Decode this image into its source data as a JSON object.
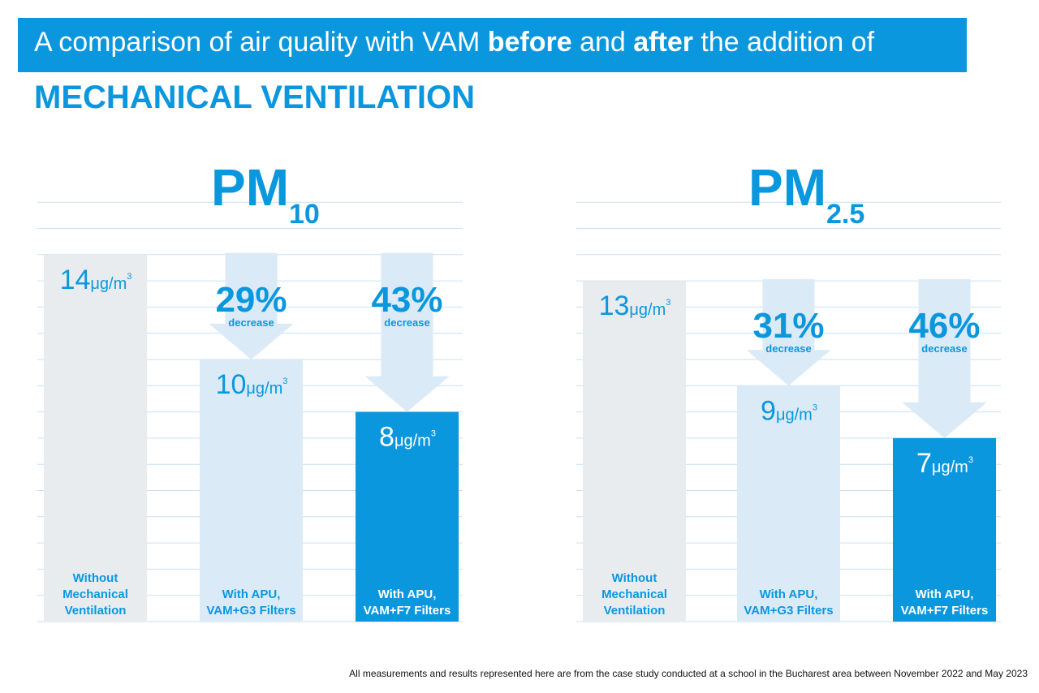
{
  "title": {
    "part1": "A comparison of air quality with VAM ",
    "bold1": "before",
    "part2": " and ",
    "bold2": "after",
    "part3": " the addition of",
    "line2": "MECHANICAL VENTILATION"
  },
  "footer_note": "All measurements and results represented here are from the case study conducted at a school in the Bucharest area between November 2022 and May 2023",
  "colors": {
    "accent": "#0a97de",
    "bar_without": "#e9ecee",
    "bar_g3": "#dbeaf7",
    "bar_f7": "#0a97de",
    "arrow": "#dbeaf7",
    "grid": "#c9e0f2",
    "label_text": "#0a97de"
  },
  "chart_data": [
    {
      "type": "bar",
      "title": "PM",
      "title_sub": "10",
      "unit": "μg/m",
      "unit_sup": "3",
      "ylim": [
        0,
        16
      ],
      "categories": [
        "Without Mechanical Ventilation",
        "With APU, VAM+G3 Filters",
        "With APU, VAM+F7 Filters"
      ],
      "category_lines": [
        [
          "Without",
          "Mechanical",
          "Ventilation"
        ],
        [
          "With APU,",
          "VAM+G3 Filters"
        ],
        [
          "With APU,",
          "VAM+F7 Filters"
        ]
      ],
      "values": [
        14,
        10,
        8
      ],
      "decreases": [
        null,
        {
          "pct": "29%",
          "label": "decrease"
        },
        {
          "pct": "43%",
          "label": "decrease"
        }
      ]
    },
    {
      "type": "bar",
      "title": "PM",
      "title_sub": "2.5",
      "unit": "μg/m",
      "unit_sup": "3",
      "ylim": [
        0,
        16
      ],
      "categories": [
        "Without Mechanical Ventilation",
        "With APU, VAM+G3 Filters",
        "With APU, VAM+F7 Filters"
      ],
      "category_lines": [
        [
          "Without",
          "Mechanical",
          "Ventilation"
        ],
        [
          "With APU,",
          "VAM+G3 Filters"
        ],
        [
          "With APU,",
          "VAM+F7 Filters"
        ]
      ],
      "values": [
        13,
        9,
        7
      ],
      "decreases": [
        null,
        {
          "pct": "31%",
          "label": "decrease"
        },
        {
          "pct": "46%",
          "label": "decrease"
        }
      ]
    }
  ]
}
